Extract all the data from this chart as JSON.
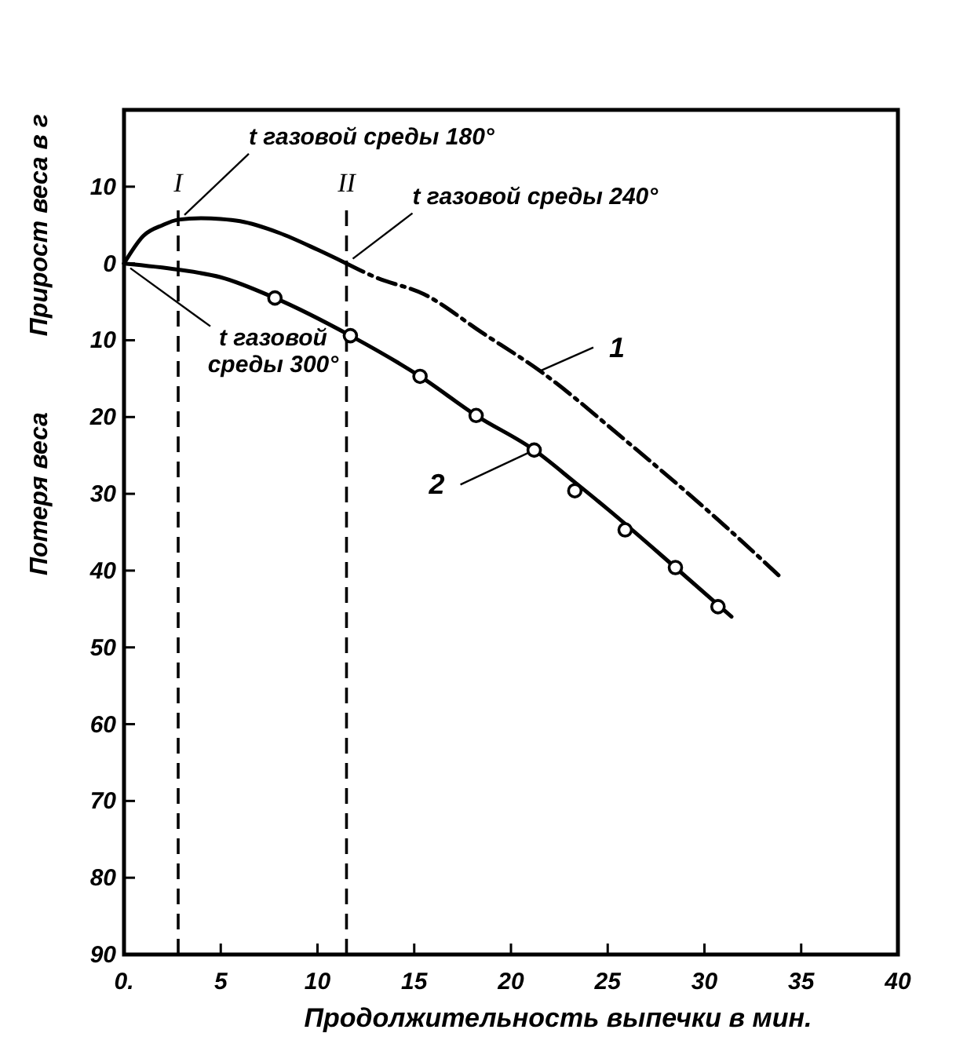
{
  "chart_data": {
    "type": "line",
    "xlabel": "Продолжительность выпечки в мин.",
    "ylabel": "Прирост веса в г",
    "annotations": [
      {
        "text": "t газовой среды 180°",
        "x": 2.8,
        "y": 5.7
      },
      {
        "text": "t газовой среды 240°",
        "x": 11.5,
        "y": 0
      },
      {
        "text": "t газовой среды 300°",
        "x": 0,
        "y": 0
      },
      "Потеря веса"
    ],
    "xlim": [
      0,
      40
    ],
    "ylim": [
      -90,
      20
    ],
    "xticks": [
      {
        "value": 0,
        "label": "0."
      },
      5,
      10,
      15,
      20,
      25,
      30,
      35,
      40
    ],
    "yticks": [
      10,
      0,
      {
        "value": -10,
        "label": "10"
      },
      {
        "value": -20,
        "label": "20"
      },
      {
        "value": -30,
        "label": "30"
      },
      {
        "value": -40,
        "label": "40"
      },
      {
        "value": -50,
        "label": "50"
      },
      {
        "value": -60,
        "label": "60"
      },
      {
        "value": -70,
        "label": "70"
      },
      {
        "value": -80,
        "label": "80"
      },
      {
        "value": -90,
        "label": "90"
      }
    ],
    "ref_lines": [
      {
        "axis": "x",
        "value": 2.8,
        "label": "I",
        "line_style": "dashed"
      },
      {
        "axis": "x",
        "value": 11.5,
        "label": "II",
        "line_style": "dashed"
      }
    ],
    "series": [
      {
        "color": "#000000",
        "line_style": "solid",
        "marker": "none",
        "x": [
          0,
          1,
          2,
          2.8,
          4,
          5,
          6,
          8,
          10,
          11.5
        ],
        "values": [
          0,
          3.6,
          5,
          5.7,
          5.9,
          5.8,
          5.5,
          4,
          1.8,
          0
        ]
      },
      {
        "name": "1",
        "color": "#000000",
        "line_style": "dashed",
        "marker": "none",
        "x": [
          11.5,
          13,
          15.5,
          18.5,
          21.5,
          25.9,
          31.2,
          34
        ],
        "values": [
          0,
          -1.8,
          -4,
          -9,
          -14,
          -23,
          -34.5,
          -41
        ]
      },
      {
        "name": "2",
        "color": "#000000",
        "line_style": "solid",
        "marker": "none",
        "x": [
          0,
          2.8,
          5,
          7.8,
          11.7,
          15.3,
          18.2,
          21.2,
          23.3,
          25,
          28.5,
          31.4
        ],
        "values": [
          0,
          -0.8,
          -1.8,
          -4.5,
          -9.4,
          -14.7,
          -19.8,
          -24.3,
          -28.5,
          -32,
          -39.6,
          -46
        ]
      },
      {
        "type": "scatter",
        "color": "#000000",
        "marker": "circle",
        "x": [
          7.8,
          11.7,
          15.3,
          18.2,
          21.2,
          23.3,
          25.9,
          28.5,
          30.7
        ],
        "values": [
          -4.5,
          -9.4,
          -14.7,
          -19.8,
          -24.3,
          -29.6,
          -34.7,
          -39.6,
          -44.7
        ]
      }
    ]
  }
}
